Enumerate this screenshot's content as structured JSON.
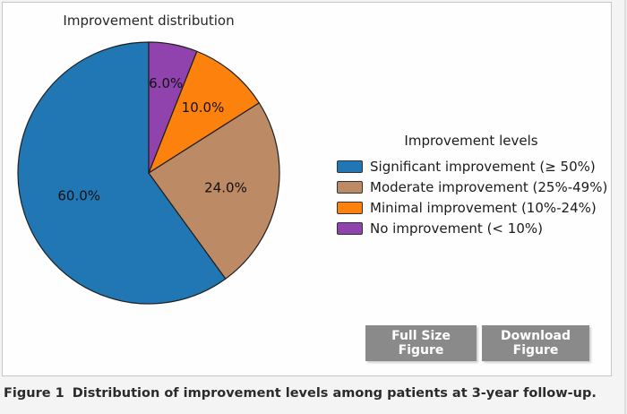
{
  "figure": {
    "caption_label": "Figure 1",
    "caption_text": "Distribution of improvement levels among patients at 3-year follow-up."
  },
  "buttons": {
    "full_size": "Full Size Figure",
    "download": "Download Figure"
  },
  "chart_data": {
    "type": "pie",
    "title": "Improvement distribution",
    "legend_title": "Improvement levels",
    "legend_position": "right",
    "labels": [
      "Significant improvement (≥ 50%)",
      "Moderate improvement (25%-49%)",
      "Minimal improvement (10%-24%)",
      "No improvement (< 10%)"
    ],
    "values": [
      60.0,
      24.0,
      10.0,
      6.0
    ],
    "pct_labels": [
      "60.0%",
      "24.0%",
      "10.0%",
      "6.0%"
    ],
    "colors": [
      "#2177b4",
      "#bc8a64",
      "#fd810d",
      "#9043ad"
    ],
    "edge_color": "#1f1f1f",
    "start_angle": 90,
    "counterclock": true
  }
}
